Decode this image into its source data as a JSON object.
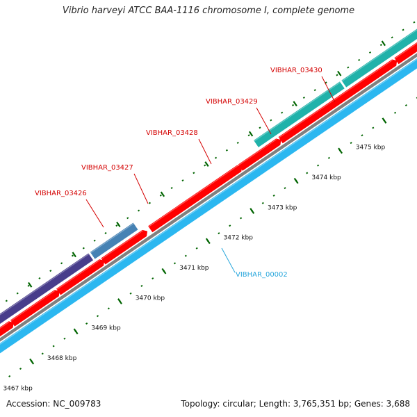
{
  "title": "Vibrio harveyi ATCC BAA-1116 chromosome I, complete genome",
  "footer": {
    "accession": "Accession: NC_009783",
    "summary": "Topology: circular; Length: 3,765,351 bp; Genes: 3,688"
  },
  "colors": {
    "gene_forward": "#ff0000",
    "gene_navy": "#483d8b",
    "gene_steel": "#4682b4",
    "gene_teal": "#20b2aa",
    "gene_reverse": "#2bb7f0",
    "backbone": "#808080",
    "tick": "#006400",
    "label_red": "#d40000",
    "label_blue": "#27a6dc"
  },
  "scale_labels": [
    "3467 kbp",
    "3468 kbp",
    "3469 kbp",
    "3470 kbp",
    "3471 kbp",
    "3472 kbp",
    "3473 kbp",
    "3474 kbp",
    "3475 kbp"
  ],
  "gene_labels": [
    {
      "id": "VIBHAR_03426",
      "text": "VIBHAR_03426",
      "kind": "top"
    },
    {
      "id": "VIBHAR_03427",
      "text": "VIBHAR_03427",
      "kind": "top"
    },
    {
      "id": "VIBHAR_03428",
      "text": "VIBHAR_03428",
      "kind": "top"
    },
    {
      "id": "VIBHAR_03429",
      "text": "VIBHAR_03429",
      "kind": "top"
    },
    {
      "id": "VIBHAR_03430",
      "text": "VIBHAR_03430",
      "kind": "top"
    },
    {
      "id": "VIBHAR_00002",
      "text": "VIBHAR_00002",
      "kind": "bottom"
    }
  ]
}
